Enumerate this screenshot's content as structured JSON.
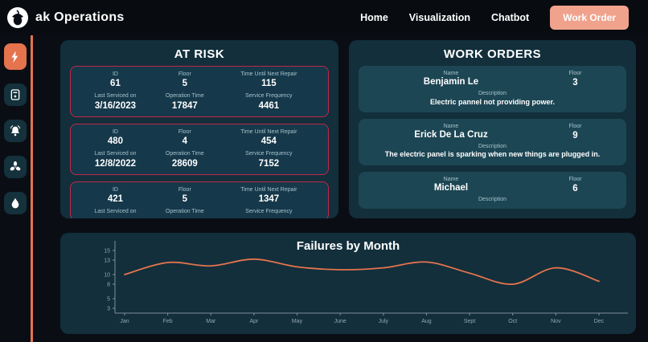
{
  "colors": {
    "accent": "#e4734e",
    "work_order_button": "#f0a28d",
    "panel_bg": "#122f3b",
    "card_bg": "#1d4654",
    "risk_border": "#c3274a"
  },
  "header": {
    "logo_text": "ak Operations",
    "nav": [
      {
        "label": "Home"
      },
      {
        "label": "Visualization"
      },
      {
        "label": "Chatbot"
      }
    ],
    "work_order_button": "Work Order"
  },
  "sidebar": {
    "icons": [
      "lightning",
      "control-panel",
      "alarm",
      "fan",
      "water-drop"
    ]
  },
  "at_risk": {
    "title": "AT RISK",
    "labels": {
      "id": "ID",
      "floor": "Floor",
      "time_until": "Time Until Next Repair",
      "last_serviced": "Last Serviced on",
      "operation_time": "Operation Time",
      "service_frequency": "Service Frequency"
    },
    "cards": [
      {
        "id": "61",
        "floor": "5",
        "time_until": "115",
        "last_serviced": "3/16/2023",
        "operation_time": "17847",
        "service_frequency": "4461"
      },
      {
        "id": "480",
        "floor": "4",
        "time_until": "454",
        "last_serviced": "12/8/2022",
        "operation_time": "28609",
        "service_frequency": "7152"
      },
      {
        "id": "421",
        "floor": "5",
        "time_until": "1347",
        "last_serviced": "",
        "operation_time": "",
        "service_frequency": ""
      }
    ]
  },
  "work_orders": {
    "title": "WORK ORDERS",
    "labels": {
      "name": "Name",
      "floor": "Floor",
      "description": "Description"
    },
    "cards": [
      {
        "name": "Benjamin Le",
        "floor": "3",
        "description": "Electric pannel not providing power."
      },
      {
        "name": "Erick De La Cruz",
        "floor": "9",
        "description": "The electric panel is sparking when new things are plugged in."
      },
      {
        "name": "Michael",
        "floor": "6",
        "description": ""
      }
    ]
  },
  "chart_data": {
    "type": "line",
    "title": "Failures by Month",
    "x": [
      "Jan",
      "Feb",
      "Mar",
      "Apr",
      "May",
      "June",
      "July",
      "Aug",
      "Sept",
      "Oct",
      "Nov",
      "Dec"
    ],
    "values": [
      10,
      12.5,
      11.8,
      13.2,
      11.6,
      11,
      11.4,
      12.6,
      10.3,
      8,
      11.4,
      8.6
    ],
    "yticks": [
      3,
      5,
      8,
      10,
      13,
      15
    ],
    "ylim": [
      2,
      16
    ],
    "legend": "none",
    "grid": false,
    "line_color": "#e4734e",
    "axis_color": "#7d8f99",
    "tick_text_color": "#93a7b0"
  }
}
